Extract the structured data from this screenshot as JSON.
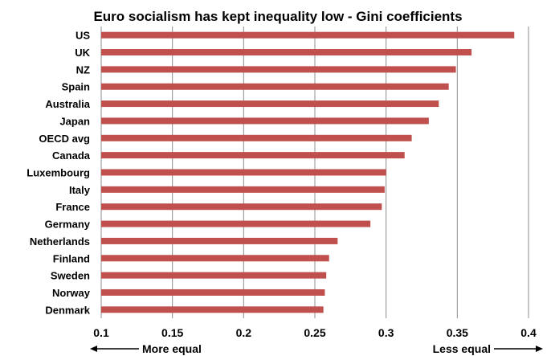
{
  "chart_data": {
    "type": "bar",
    "orientation": "horizontal",
    "title": "Euro socialism has kept inequality low - Gini coefficients",
    "xlabel": "",
    "ylabel": "",
    "categories": [
      "US",
      "UK",
      "NZ",
      "Spain",
      "Australia",
      "Japan",
      "OECD avg",
      "Canada",
      "Luxembourg",
      "Italy",
      "France",
      "Germany",
      "Netherlands",
      "Finland",
      "Sweden",
      "Norway",
      "Denmark"
    ],
    "values": [
      0.39,
      0.36,
      0.349,
      0.344,
      0.337,
      0.33,
      0.318,
      0.313,
      0.3,
      0.299,
      0.297,
      0.289,
      0.266,
      0.26,
      0.258,
      0.257,
      0.256
    ],
    "xlim": [
      0.1,
      0.4
    ],
    "xticks": [
      "0.1",
      "0.15",
      "0.2",
      "0.25",
      "0.3",
      "0.35",
      "0.4"
    ],
    "grid": true,
    "legend": "none",
    "annotations": [
      {
        "text": "More equal",
        "arrow": "left"
      },
      {
        "text": "Less equal",
        "arrow": "right"
      }
    ],
    "bar_color": "#C0504D",
    "grid_color": "#8C8C8C"
  }
}
